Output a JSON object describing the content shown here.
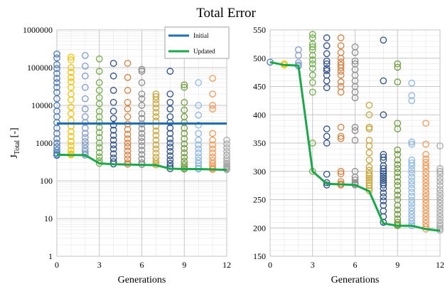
{
  "figure": {
    "title": "Total Error"
  },
  "chart_data": [
    {
      "type": "scatter",
      "scale_y": "log",
      "title": "Total Error",
      "xlabel": "Generations",
      "ylabel": "J_Total [-]",
      "ylabel_main": "J",
      "ylabel_sub": "Total",
      "ylabel_unit": " [-]",
      "xlim": [
        0,
        12
      ],
      "ylim": [
        1,
        1000000
      ],
      "xticks": [
        0,
        3,
        6,
        9,
        12
      ],
      "yticks": [
        1,
        10,
        100,
        1000,
        10000,
        100000,
        1000000
      ],
      "xtick_labels": [
        "0",
        "3",
        "6",
        "9",
        "12"
      ],
      "ytick_labels": [
        "1",
        "10",
        "100",
        "1000",
        "10000",
        "100000",
        "1000000"
      ],
      "grid": true,
      "legend": {
        "placement": "top-right",
        "entries": [
          {
            "name": "Initial",
            "color": "#1f6fb5"
          },
          {
            "name": "Updated",
            "color": "#1aa84a"
          }
        ]
      },
      "series": [
        {
          "name": "Initial",
          "type": "line",
          "color": "#1f6fb5",
          "x": [
            0,
            12
          ],
          "y": [
            3300,
            3300
          ]
        },
        {
          "name": "Updated",
          "type": "line",
          "color": "#1aa84a",
          "x": [
            0,
            1,
            2,
            3,
            4,
            5,
            6,
            7,
            8,
            9,
            10,
            11,
            12
          ],
          "y": [
            490,
            485,
            480,
            290,
            275,
            270,
            265,
            260,
            210,
            205,
            205,
            200,
            195
          ]
        }
      ],
      "generation_colors": [
        "#4a78b8",
        "#f2c200",
        "#7f9bc9",
        "#6fad47",
        "#2e4f87",
        "#d88040",
        "#8c8c8c",
        "#c8a63a",
        "#2a4f88",
        "#6e9c3a",
        "#8db8e0",
        "#f09a58",
        "#a8a8a8"
      ],
      "generations": [
        {
          "gen": 0,
          "values": [
            230000,
            180000,
            120000,
            95000,
            70000,
            52000,
            40000,
            30000,
            22000,
            15000,
            10000,
            7000,
            5000,
            3500,
            2500,
            1800,
            1300,
            1000,
            800,
            650,
            550,
            500,
            470
          ]
        },
        {
          "gen": 1,
          "values": [
            190000,
            160000,
            100000,
            75000,
            55000,
            42000,
            30000,
            20000,
            14000,
            9000,
            6000,
            4000,
            2800,
            2000,
            1500,
            1100,
            850,
            650,
            520,
            490
          ]
        },
        {
          "gen": 2,
          "values": [
            210000,
            110000,
            60000,
            30000,
            15000,
            8000,
            5000,
            3500,
            2500,
            1800,
            1400,
            1100,
            900,
            720,
            600,
            520,
            480
          ]
        },
        {
          "gen": 3,
          "values": [
            170000,
            80000,
            40000,
            25000,
            16000,
            11000,
            7000,
            5000,
            3600,
            2600,
            1900,
            1400,
            1000,
            760,
            560,
            430,
            340,
            290
          ]
        },
        {
          "gen": 4,
          "values": [
            130000,
            60000,
            25000,
            12000,
            7000,
            4500,
            3000,
            2200,
            1600,
            1200,
            900,
            700,
            520,
            400,
            320,
            280
          ]
        },
        {
          "gen": 5,
          "values": [
            130000,
            55000,
            25000,
            12000,
            8000,
            5000,
            3200,
            2300,
            1700,
            1300,
            1000,
            800,
            620,
            480,
            380,
            300,
            275
          ]
        },
        {
          "gen": 6,
          "values": [
            90000,
            80000,
            40000,
            20000,
            15000,
            10000,
            6000,
            4500,
            3200,
            2400,
            1800,
            1400,
            1100,
            850,
            650,
            500,
            380,
            300,
            270
          ]
        },
        {
          "gen": 7,
          "values": [
            20000,
            17000,
            14000,
            11000,
            8500,
            6500,
            5000,
            3800,
            2800,
            2100,
            1600,
            1200,
            900,
            700,
            540,
            420,
            340,
            290,
            265
          ]
        },
        {
          "gen": 8,
          "values": [
            80000,
            20000,
            12000,
            8000,
            5000,
            3500,
            2500,
            1800,
            1300,
            1000,
            780,
            600,
            460,
            360,
            290,
            240,
            210
          ]
        },
        {
          "gen": 9,
          "values": [
            35000,
            30000,
            12000,
            7500,
            5000,
            3500,
            2500,
            1800,
            1300,
            950,
            720,
            550,
            420,
            330,
            270,
            230,
            210,
            205
          ]
        },
        {
          "gen": 10,
          "values": [
            40000,
            10000,
            5500,
            3000,
            1800,
            1200,
            900,
            700,
            550,
            430,
            350,
            290,
            245,
            215,
            205
          ]
        },
        {
          "gen": 11,
          "values": [
            52000,
            20000,
            10000,
            8000,
            1800,
            1200,
            900,
            700,
            550,
            430,
            350,
            290,
            250,
            225,
            210,
            200
          ]
        },
        {
          "gen": 12,
          "values": [
            1200,
            950,
            750,
            600,
            480,
            390,
            330,
            290,
            260,
            240,
            225,
            215,
            205,
            198
          ]
        }
      ]
    },
    {
      "type": "scatter",
      "xlabel": "Generations",
      "ylabel": "",
      "xlim": [
        0,
        12
      ],
      "ylim": [
        150,
        550
      ],
      "xticks": [
        0,
        3,
        6,
        9,
        12
      ],
      "yticks": [
        150,
        200,
        250,
        300,
        350,
        400,
        450,
        500,
        550
      ],
      "xtick_labels": [
        "0",
        "3",
        "6",
        "9",
        "12"
      ],
      "ytick_labels": [
        "150",
        "200",
        "250",
        "300",
        "350",
        "400",
        "450",
        "500",
        "550"
      ],
      "grid": true,
      "series": [
        {
          "name": "Updated",
          "type": "line",
          "color": "#1aa84a",
          "x": [
            0,
            1,
            2,
            3,
            4,
            5,
            6,
            7,
            8,
            9,
            10,
            11,
            12
          ],
          "y": [
            493,
            488,
            487,
            300,
            278,
            277,
            276,
            265,
            208,
            204,
            204,
            198,
            195
          ]
        }
      ],
      "generation_colors": [
        "#4a78b8",
        "#f2c200",
        "#7f9bc9",
        "#6fad47",
        "#2e4f87",
        "#d88040",
        "#8c8c8c",
        "#c8a63a",
        "#2a4f88",
        "#6e9c3a",
        "#8db8e0",
        "#f09a58",
        "#a8a8a8"
      ],
      "generations": [
        {
          "gen": 0,
          "values": [
            493
          ]
        },
        {
          "gen": 1,
          "values": [
            490,
            488
          ]
        },
        {
          "gen": 2,
          "values": [
            515,
            505,
            492,
            488,
            486
          ]
        },
        {
          "gen": 3,
          "values": [
            542,
            536,
            525,
            520,
            515,
            505,
            497,
            490,
            482,
            470,
            457,
            440,
            350,
            300
          ]
        },
        {
          "gen": 4,
          "values": [
            536,
            522,
            508,
            495,
            490,
            482,
            478,
            470,
            460,
            448,
            375,
            362,
            350,
            295,
            280,
            276
          ]
        },
        {
          "gen": 5,
          "values": [
            536,
            522,
            510,
            500,
            493,
            488,
            483,
            477,
            470,
            458,
            450,
            440,
            378,
            362,
            358,
            300,
            296,
            282,
            278,
            276
          ]
        },
        {
          "gen": 6,
          "values": [
            520,
            510,
            495,
            490,
            480,
            470,
            460,
            450,
            440,
            430,
            378,
            372,
            355,
            300,
            290,
            285,
            280,
            278,
            276
          ]
        },
        {
          "gen": 7,
          "values": [
            417,
            400,
            378,
            375,
            355,
            345,
            333,
            320,
            308,
            302,
            296,
            292,
            288,
            284,
            280,
            275,
            270,
            266
          ]
        },
        {
          "gen": 8,
          "values": [
            532,
            460,
            400,
            330,
            325,
            320,
            310,
            305,
            300,
            296,
            292,
            288,
            284,
            280,
            276,
            270,
            262,
            255,
            248,
            240,
            230,
            220,
            210
          ]
        },
        {
          "gen": 9,
          "values": [
            490,
            484,
            458,
            385,
            375,
            338,
            330,
            320,
            312,
            305,
            298,
            290,
            282,
            275,
            266,
            258,
            250,
            240,
            232,
            224,
            216,
            210,
            206,
            204
          ]
        },
        {
          "gen": 10,
          "values": [
            456,
            434,
            425,
            352,
            348,
            320,
            315,
            310,
            303,
            297,
            290,
            283,
            277,
            270,
            263,
            256,
            249,
            243,
            236,
            230,
            224,
            218,
            212,
            207,
            204
          ]
        },
        {
          "gen": 11,
          "values": [
            385,
            348,
            330,
            322,
            316,
            310,
            305,
            298,
            292,
            286,
            280,
            274,
            268,
            262,
            256,
            250,
            244,
            238,
            232,
            226,
            220,
            214,
            208,
            202,
            198
          ]
        },
        {
          "gen": 12,
          "values": [
            345,
            305,
            300,
            295,
            288,
            282,
            275,
            268,
            262,
            256,
            250,
            244,
            238,
            232,
            226,
            220,
            214,
            208,
            203,
            199,
            196
          ]
        }
      ]
    }
  ]
}
